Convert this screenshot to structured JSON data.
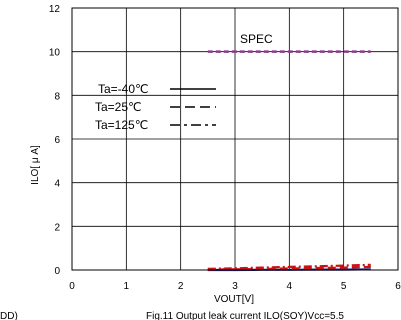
{
  "chart_data": {
    "type": "line",
    "xlabel": "VOUT[V]",
    "ylabel": "ILO[ μ A]",
    "xlim": [
      0,
      6
    ],
    "ylim": [
      0,
      12
    ],
    "x_ticks": [
      "0",
      "1",
      "2",
      "3",
      "4",
      "5",
      "6"
    ],
    "y_ticks": [
      "0",
      "2",
      "4",
      "6",
      "8",
      "10",
      "12"
    ],
    "grid": true,
    "legend_placement": "left, middle",
    "legend": [
      "Ta=-40℃",
      "Ta=25℃",
      "Ta=125℃"
    ],
    "annotation": "SPEC",
    "spec": {
      "x": [
        2.5,
        5.5
      ],
      "y": [
        10,
        10
      ],
      "color": "#8b3a8b"
    },
    "series": [
      {
        "name": "Ta=-40℃",
        "style": "solid",
        "color": "#2a2a8a",
        "x": [
          2.5,
          3.0,
          3.5,
          4.0,
          4.5,
          5.0,
          5.5
        ],
        "y": [
          0.0,
          0.0,
          0.01,
          0.01,
          0.02,
          0.02,
          0.03
        ]
      },
      {
        "name": "Ta=25℃",
        "style": "dashed",
        "color": "#cc1111",
        "x": [
          2.5,
          3.0,
          3.5,
          4.0,
          4.5,
          5.0,
          5.5
        ],
        "y": [
          0.02,
          0.03,
          0.05,
          0.07,
          0.09,
          0.11,
          0.14
        ]
      },
      {
        "name": "Ta=125℃",
        "style": "dashdot",
        "color": "#cc1111",
        "x": [
          2.5,
          3.0,
          3.5,
          4.0,
          4.5,
          5.0,
          5.5
        ],
        "y": [
          0.05,
          0.08,
          0.11,
          0.14,
          0.17,
          0.2,
          0.24
        ]
      }
    ]
  },
  "caption_left": "DD)",
  "caption": "Fig.11  Output leak current ILO(SOY)Vcc=5.5"
}
